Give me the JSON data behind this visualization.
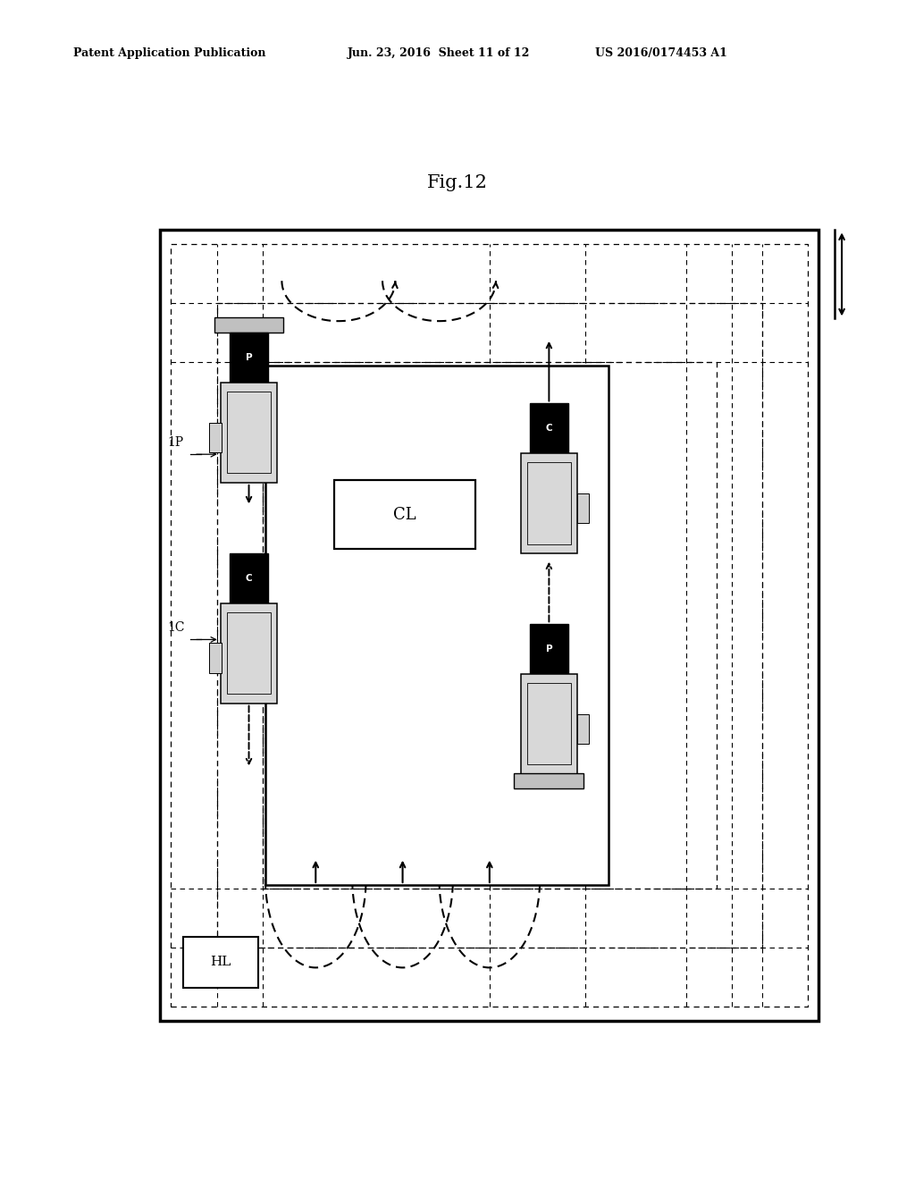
{
  "title": "Fig.12",
  "header_left": "Patent Application Publication",
  "header_mid": "Jun. 23, 2016  Sheet 11 of 12",
  "header_right": "US 2016/0174453 A1",
  "bg_color": "#ffffff",
  "label_1P": "1P",
  "label_1C": "1C",
  "label_CL": "CL",
  "label_HL": "HL"
}
